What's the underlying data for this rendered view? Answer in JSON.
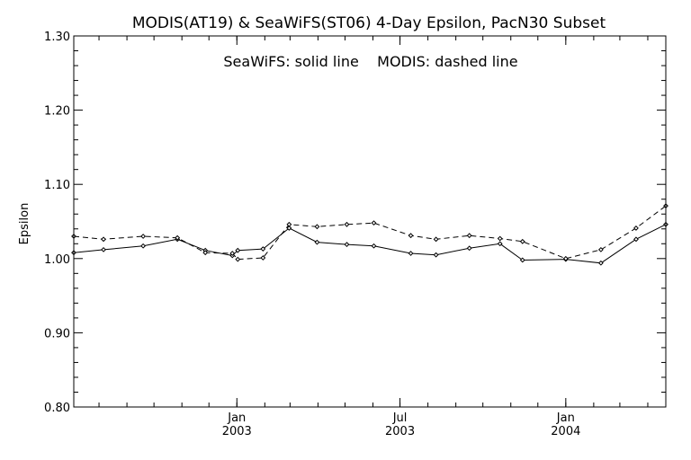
{
  "chart_data": {
    "type": "line",
    "title": "MODIS(AT19) & SeaWiFS(ST06) 4-Day Epsilon, PacN30 Subset",
    "annotation": "SeaWiFS: solid line    MODIS: dashed line",
    "xlabel": "",
    "ylabel": "Epsilon",
    "ylim": [
      0.8,
      1.3
    ],
    "yticks": [
      "0.80",
      "0.90",
      "1.00",
      "1.10",
      "1.20",
      "1.30"
    ],
    "xlim": [
      "2002-07-04",
      "2004-04-21"
    ],
    "xticks": [
      {
        "date": "2003-01-01",
        "line1": "Jan",
        "line2": "2003"
      },
      {
        "date": "2003-07-01",
        "line1": "Jul",
        "line2": "2003"
      },
      {
        "date": "2004-01-01",
        "line1": "Jan",
        "line2": "2004"
      }
    ],
    "grid": false,
    "series": [
      {
        "style": "solid",
        "color": "#000000",
        "points": [
          [
            "2002-07-04",
            1.008
          ],
          [
            "2002-08-06",
            1.012
          ],
          [
            "2002-09-19",
            1.017
          ],
          [
            "2002-10-27",
            1.026
          ],
          [
            "2002-11-27",
            1.011
          ],
          [
            "2002-12-27",
            1.004
          ],
          [
            "2003-01-02",
            1.011
          ],
          [
            "2003-01-30",
            1.013
          ],
          [
            "2003-02-28",
            1.041
          ],
          [
            "2003-03-31",
            1.022
          ],
          [
            "2003-05-03",
            1.019
          ],
          [
            "2003-06-02",
            1.017
          ],
          [
            "2003-07-13",
            1.007
          ],
          [
            "2003-08-10",
            1.005
          ],
          [
            "2003-09-16",
            1.014
          ],
          [
            "2003-10-20",
            1.02
          ],
          [
            "2003-11-14",
            0.998
          ],
          [
            "2004-01-01",
            0.999
          ],
          [
            "2004-02-09",
            0.994
          ],
          [
            "2004-03-19",
            1.026
          ],
          [
            "2004-04-21",
            1.046
          ]
        ]
      },
      {
        "style": "dashed",
        "color": "#000000",
        "points": [
          [
            "2002-07-04",
            1.03
          ],
          [
            "2002-08-06",
            1.026
          ],
          [
            "2002-09-19",
            1.03
          ],
          [
            "2002-10-27",
            1.028
          ],
          [
            "2002-11-27",
            1.008
          ],
          [
            "2002-12-27",
            1.007
          ],
          [
            "2003-01-02",
            0.999
          ],
          [
            "2003-01-30",
            1.001
          ],
          [
            "2003-02-28",
            1.046
          ],
          [
            "2003-03-31",
            1.043
          ],
          [
            "2003-05-03",
            1.046
          ],
          [
            "2003-06-02",
            1.048
          ],
          [
            "2003-07-13",
            1.031
          ],
          [
            "2003-08-10",
            1.026
          ],
          [
            "2003-09-16",
            1.031
          ],
          [
            "2003-10-20",
            1.027
          ],
          [
            "2003-11-14",
            1.023
          ],
          [
            "2004-01-01",
            1.0
          ],
          [
            "2004-02-09",
            1.012
          ],
          [
            "2004-03-19",
            1.041
          ],
          [
            "2004-04-21",
            1.071
          ]
        ]
      }
    ]
  }
}
